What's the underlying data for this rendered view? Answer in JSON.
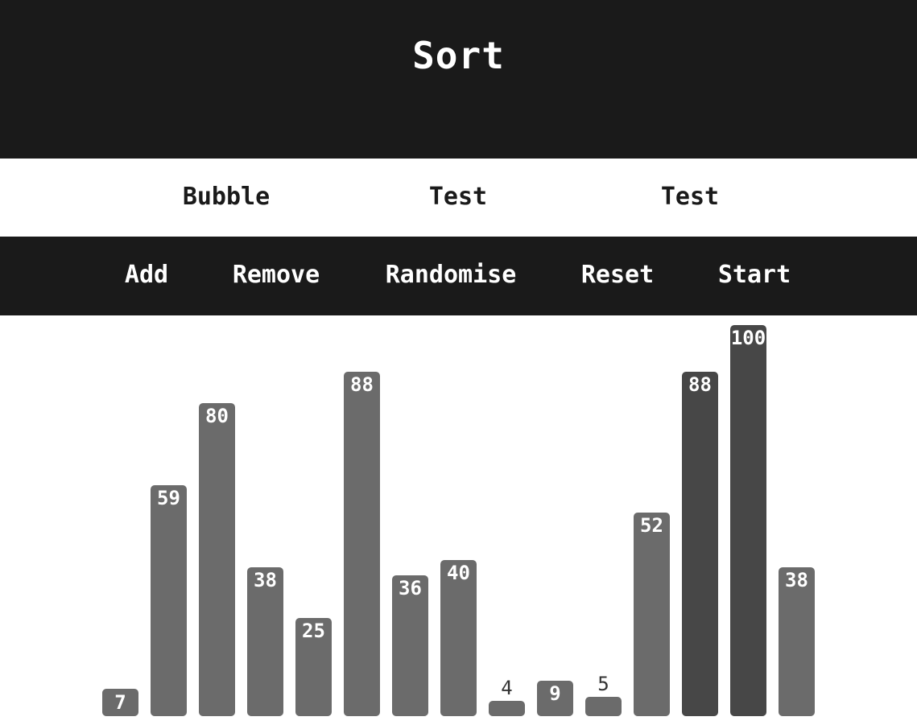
{
  "header": {
    "title": "Sort"
  },
  "algorithms": [
    {
      "label": "Bubble"
    },
    {
      "label": "Test"
    },
    {
      "label": "Test"
    }
  ],
  "controls": {
    "add": "Add",
    "remove": "Remove",
    "randomise": "Randomise",
    "reset": "Reset",
    "start": "Start"
  },
  "colors": {
    "header_bg": "#1a1a1a",
    "bar": "#6b6b6b",
    "bar_sorted": "#474747"
  },
  "chart_data": {
    "type": "bar",
    "values": [
      7,
      59,
      80,
      38,
      25,
      88,
      36,
      40,
      4,
      9,
      5,
      52,
      88,
      100,
      38
    ],
    "sorted_flags": [
      false,
      false,
      false,
      false,
      false,
      false,
      false,
      false,
      false,
      false,
      false,
      false,
      true,
      true,
      false
    ],
    "ylim": [
      0,
      100
    ]
  }
}
